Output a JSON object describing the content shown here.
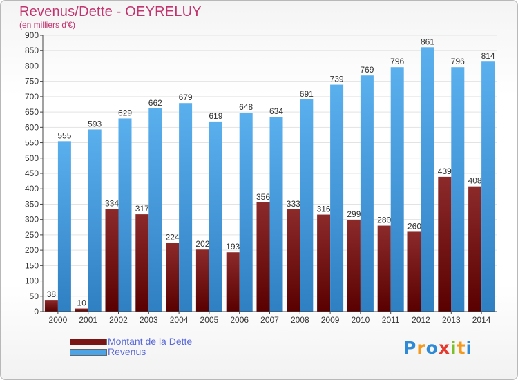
{
  "header": {
    "title": "Revenus/Dette - OEYRELUY",
    "subtitle": "(en milliers d'€)"
  },
  "chart_data": {
    "type": "bar",
    "categories": [
      "2000",
      "2001",
      "2002",
      "2003",
      "2004",
      "2005",
      "2006",
      "2007",
      "2008",
      "2009",
      "2010",
      "2011",
      "2012",
      "2013",
      "2014"
    ],
    "series": [
      {
        "name": "Montant de la Dette",
        "color": "#7a1515",
        "values": [
          38,
          10,
          334,
          317,
          224,
          202,
          193,
          356,
          333,
          316,
          299,
          280,
          260,
          439,
          408
        ]
      },
      {
        "name": "Revenus",
        "color": "#4ca3e6",
        "values": [
          555,
          593,
          629,
          662,
          679,
          619,
          648,
          634,
          691,
          739,
          769,
          796,
          861,
          796,
          814
        ]
      }
    ],
    "yticks": [
      0,
      50,
      100,
      150,
      200,
      250,
      300,
      350,
      400,
      450,
      500,
      550,
      600,
      650,
      700,
      750,
      800,
      850,
      900
    ],
    "ylim": [
      0,
      900
    ],
    "grid": true
  },
  "legend": {
    "items": [
      {
        "label": "Montant de la Dette",
        "color": "#7a1515"
      },
      {
        "label": "Revenus",
        "color": "#4ca3e6"
      }
    ]
  },
  "brand": {
    "letters": [
      {
        "ch": "P",
        "color": "#2e8ad6"
      },
      {
        "ch": "r",
        "color": "#f39a1e"
      },
      {
        "ch": "o",
        "color": "#2e8ad6"
      },
      {
        "ch": "x",
        "color": "#e6392e"
      },
      {
        "ch": "i",
        "color": "#7bbf2a"
      },
      {
        "ch": "t",
        "color": "#f39a1e"
      },
      {
        "ch": "i",
        "color": "#2e8ad6"
      }
    ]
  }
}
